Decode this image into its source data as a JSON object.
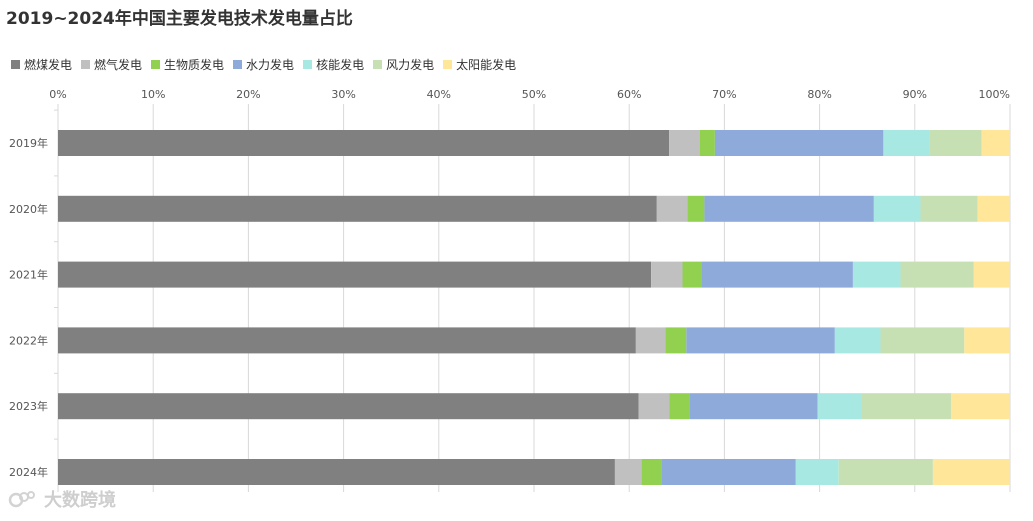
{
  "title": "2019~2024年中国主要发电技术发电量占比",
  "watermark": "大数跨境",
  "chart_data": {
    "type": "bar",
    "orientation": "horizontal",
    "stacked": true,
    "normalized": true,
    "title": "2019~2024年中国主要发电技术发电量占比",
    "categories": [
      "2019年",
      "2020年",
      "2021年",
      "2022年",
      "2023年",
      "2024年"
    ],
    "x_ticks": [
      "0%",
      "10%",
      "20%",
      "30%",
      "40%",
      "50%",
      "60%",
      "70%",
      "80%",
      "90%",
      "100%"
    ],
    "xlim": [
      0,
      100
    ],
    "xaxis_position": "top",
    "grid": true,
    "legend_position": "top-left",
    "series": [
      {
        "name": "燃煤发电",
        "color": "#808080",
        "values": [
          64.2,
          62.9,
          62.3,
          60.7,
          61.0,
          58.5
        ]
      },
      {
        "name": "燃气发电",
        "color": "#c0c0c0",
        "values": [
          3.2,
          3.2,
          3.3,
          3.1,
          3.2,
          2.8
        ]
      },
      {
        "name": "生物质发电",
        "color": "#92d050",
        "values": [
          1.6,
          1.8,
          2.0,
          2.2,
          2.1,
          2.1
        ]
      },
      {
        "name": "水力发电",
        "color": "#8eaadb",
        "values": [
          17.7,
          17.8,
          15.9,
          15.6,
          13.5,
          14.1
        ]
      },
      {
        "name": "核能发电",
        "color": "#a8e8e2",
        "values": [
          4.8,
          4.9,
          5.0,
          4.8,
          4.6,
          4.5
        ]
      },
      {
        "name": "风力发电",
        "color": "#c6e0b4",
        "values": [
          5.5,
          6.0,
          7.7,
          8.8,
          9.4,
          9.9
        ]
      },
      {
        "name": "太阳能发电",
        "color": "#ffe699",
        "values": [
          3.0,
          3.4,
          3.8,
          4.8,
          6.2,
          8.1
        ]
      }
    ]
  }
}
